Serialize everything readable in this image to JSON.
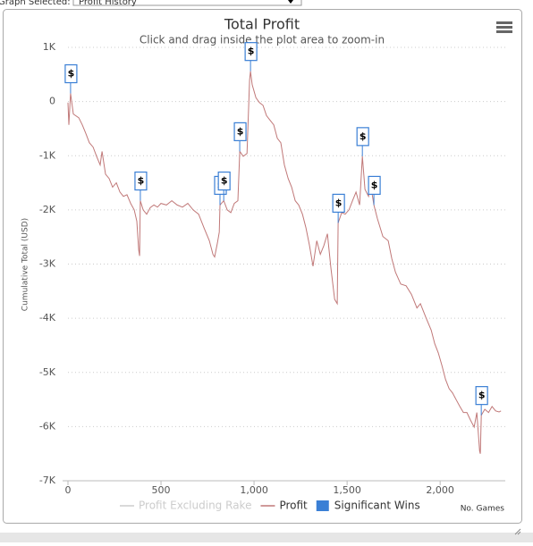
{
  "controls": {
    "label": "Graph Selected:",
    "selection": "Profit History"
  },
  "chart_data": {
    "type": "line",
    "title": "Total Profit",
    "subtitle": "Click and drag inside the plot area to zoom-in",
    "y_label": "Cumulative Total (USD)",
    "x_label": "No. Games",
    "xlim": [
      0,
      2350
    ],
    "ylim": [
      -7000,
      1000
    ],
    "xticks": [
      0,
      500,
      {
        "value": 1000,
        "label": "1,000"
      },
      {
        "value": 1500,
        "label": "1,500"
      },
      {
        "value": 2000,
        "label": "2,000"
      }
    ],
    "yticks": [
      {
        "value": 1000,
        "label": "1K"
      },
      0,
      {
        "value": -1000,
        "label": "-1K"
      },
      {
        "value": -2000,
        "label": "-2K"
      },
      {
        "value": -3000,
        "label": "-3K"
      },
      {
        "value": -4000,
        "label": "-4K"
      },
      {
        "value": -5000,
        "label": "-5K"
      },
      {
        "value": -6000,
        "label": "-6K"
      },
      {
        "value": -7000,
        "label": "-7K"
      }
    ],
    "grid": true,
    "series": [
      {
        "name": "Profit Excluding Rake",
        "color": "#cccccc",
        "visible": false
      },
      {
        "name": "Profit",
        "color": "#c07878",
        "visible": true,
        "x": [
          0,
          5,
          14,
          29,
          58,
          77,
          96,
          115,
          135,
          154,
          173,
          183,
          202,
          221,
          240,
          260,
          279,
          298,
          317,
          337,
          356,
          370,
          380,
          385,
          389,
          404,
          423,
          442,
          462,
          481,
          500,
          529,
          558,
          587,
          615,
          644,
          673,
          702,
          731,
          760,
          779,
          788,
          803,
          813,
          817,
          837,
          856,
          875,
          894,
          913,
          923,
          942,
          962,
          976,
          981,
          990,
          1010,
          1029,
          1048,
          1067,
          1087,
          1106,
          1125,
          1144,
          1163,
          1183,
          1202,
          1221,
          1240,
          1260,
          1279,
          1298,
          1317,
          1337,
          1356,
          1375,
          1394,
          1413,
          1433,
          1447,
          1452,
          1471,
          1490,
          1510,
          1529,
          1548,
          1567,
          1582,
          1596,
          1615,
          1625,
          1644,
          1663,
          1692,
          1721,
          1740,
          1760,
          1788,
          1817,
          1846,
          1875,
          1894,
          1923,
          1952,
          1971,
          1990,
          2010,
          2029,
          2048,
          2067,
          2087,
          2106,
          2125,
          2144,
          2163,
          2183,
          2197,
          2212,
          2216,
          2221,
          2240,
          2260,
          2279,
          2298,
          2317,
          2327
        ],
        "values": [
          -20,
          -430,
          150,
          -230,
          -300,
          -430,
          -590,
          -760,
          -840,
          -1010,
          -1170,
          -920,
          -1340,
          -1420,
          -1580,
          -1500,
          -1670,
          -1750,
          -1720,
          -1880,
          -2000,
          -2210,
          -2740,
          -2850,
          -1830,
          -2000,
          -2080,
          -1960,
          -1910,
          -1950,
          -1880,
          -1910,
          -1830,
          -1910,
          -1950,
          -1880,
          -2000,
          -2080,
          -2330,
          -2570,
          -2820,
          -2870,
          -2610,
          -2410,
          -1910,
          -1830,
          -2000,
          -2050,
          -1880,
          -1830,
          -920,
          -1010,
          -960,
          400,
          560,
          310,
          70,
          -20,
          -70,
          -260,
          -350,
          -430,
          -680,
          -760,
          -1170,
          -1420,
          -1580,
          -1830,
          -1910,
          -2080,
          -2330,
          -2660,
          -3040,
          -2570,
          -2820,
          -2660,
          -2440,
          -3070,
          -3650,
          -3730,
          -2240,
          -2050,
          -2080,
          -2000,
          -1830,
          -1670,
          -1910,
          -1010,
          -1620,
          -1750,
          -1500,
          -1910,
          -2160,
          -2490,
          -2570,
          -2900,
          -3150,
          -3370,
          -3400,
          -3560,
          -3810,
          -3730,
          -3980,
          -4220,
          -4470,
          -4640,
          -4880,
          -5130,
          -5300,
          -5380,
          -5510,
          -5630,
          -5740,
          -5740,
          -5880,
          -6010,
          -5740,
          -6450,
          -6500,
          -5790,
          -5680,
          -5740,
          -5630,
          -5710,
          -5730,
          -5710
        ]
      }
    ],
    "flags": {
      "name": "Significant Wins",
      "color": "#3a7fd5",
      "label": "$",
      "x": [
        14,
        389,
        817,
        837,
        923,
        981,
        1452,
        1582,
        1644,
        2221
      ],
      "values": [
        150,
        -1830,
        -1910,
        -1830,
        -920,
        560,
        -2240,
        -1010,
        -1910,
        -5790
      ]
    }
  }
}
